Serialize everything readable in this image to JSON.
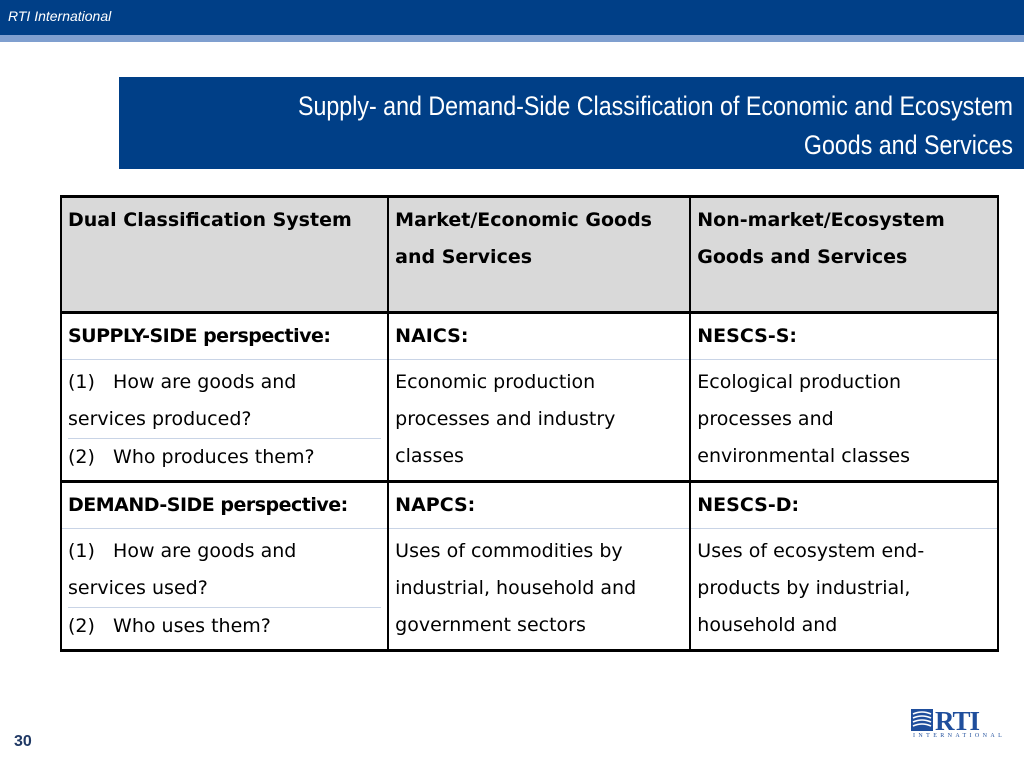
{
  "header": {
    "org_label": "RTI International"
  },
  "title": {
    "line1": "Supply- and Demand-Side Classification of Economic and Ecosystem",
    "line2": "Goods and Services"
  },
  "table": {
    "headers": [
      {
        "line1": "Dual Classification System",
        "line2": ""
      },
      {
        "line1": "Market/Economic Goods",
        "line2": "and Services"
      },
      {
        "line1": "Non-market/Ecosystem",
        "line2": "Goods and Services"
      }
    ],
    "supply": {
      "label": "SUPPLY-SIDE perspective:",
      "market_code": "NAICS:",
      "ecosystem_code": "NESCS-S:",
      "q1_line1": "(1)   How are goods and",
      "q1_line2": "services produced?",
      "q2": "(2)   Who produces them?",
      "market_lines": [
        "Economic production",
        "processes and industry",
        "classes"
      ],
      "ecosystem_lines": [
        "Ecological production",
        "processes and",
        "environmental classes"
      ]
    },
    "demand": {
      "label": "DEMAND-SIDE perspective:",
      "market_code": "NAPCS:",
      "ecosystem_code": "NESCS-D:",
      "q1_line1": "(1)   How are goods and",
      "q1_line2": "services used?",
      "q2": "(2)   Who uses them?",
      "market_lines": [
        "Uses of commodities by",
        "industrial, household and",
        "government sectors"
      ],
      "ecosystem_lines": [
        "Uses of ecosystem end-",
        "products by industrial,",
        "household and"
      ]
    }
  },
  "footer": {
    "page_number": "30",
    "logo_text": "RTI",
    "logo_subtext": "INTERNATIONAL"
  },
  "colors": {
    "brand_blue": "#003f87",
    "stripe_blue": "#7f9fcf",
    "header_gray": "#d9d9d9"
  }
}
